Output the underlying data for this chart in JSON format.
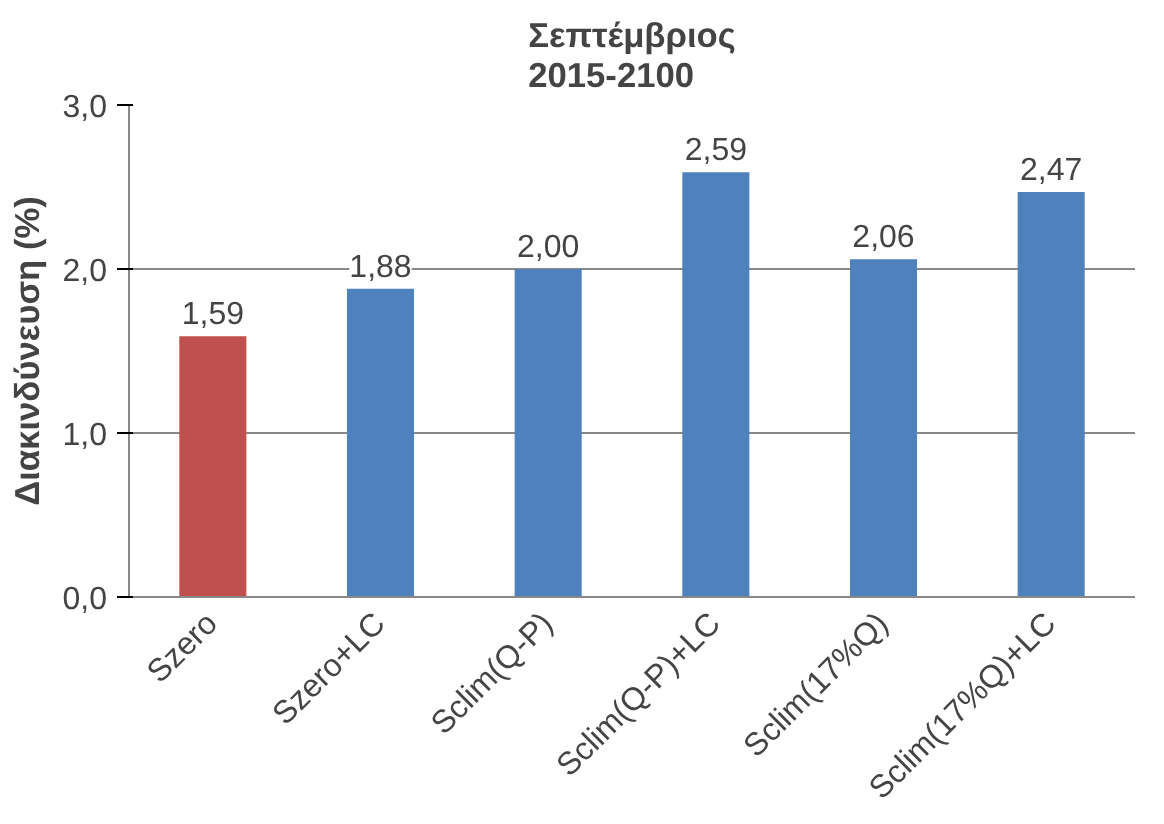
{
  "chart_data": {
    "type": "bar",
    "title": "Σεπτέμβριος\n2015-2100",
    "ylabel": "Διακινδύνευση (%)",
    "categories": [
      "Szero",
      "Szero+LC",
      "Sclim(Q-P)",
      "Sclim(Q-P)+LC",
      "Sclim(17%Q)",
      "Sclim(17%Q)+LC"
    ],
    "values": [
      1.59,
      1.88,
      2.0,
      2.59,
      2.06,
      2.47
    ],
    "colors": [
      "#c0504d",
      "#4f81bd",
      "#4f81bd",
      "#4f81bd",
      "#4f81bd",
      "#4f81bd"
    ],
    "value_labels": [
      "1,59",
      "1,88",
      "2,00",
      "2,59",
      "2,06",
      "2,47"
    ],
    "ylim": [
      0,
      3
    ],
    "yticks": [
      {
        "value": 0,
        "label": "0,0"
      },
      {
        "value": 1,
        "label": "1,0"
      },
      {
        "value": 2,
        "label": "2,0"
      },
      {
        "value": 3,
        "label": "3,0"
      }
    ],
    "grid": "y"
  }
}
